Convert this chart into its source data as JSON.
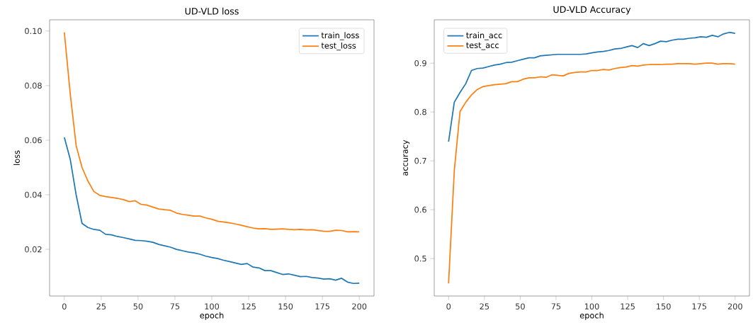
{
  "chart_data": [
    {
      "type": "line",
      "title": "UD-VLD loss",
      "xlabel": "epoch",
      "ylabel": "loss",
      "legend": "top right",
      "xlim": [
        -10,
        210
      ],
      "ylim": [
        0.0029,
        0.1041
      ],
      "xticks": [
        0,
        25,
        50,
        75,
        100,
        125,
        150,
        175,
        200
      ],
      "yticks": [
        0.02,
        0.04,
        0.06,
        0.08,
        {
          "value": 0.1,
          "label": "0.10"
        }
      ],
      "x": [
        0,
        4,
        8,
        12,
        16,
        20,
        24,
        28,
        32,
        36,
        40,
        44,
        48,
        52,
        56,
        60,
        64,
        68,
        72,
        76,
        80,
        84,
        88,
        92,
        96,
        100,
        104,
        108,
        112,
        116,
        120,
        124,
        128,
        132,
        136,
        140,
        144,
        148,
        152,
        156,
        160,
        164,
        168,
        172,
        176,
        180,
        184,
        188,
        192,
        196,
        200
      ],
      "series": [
        {
          "name": "train_loss",
          "color": "#1f77b4",
          "values": [
            0.061,
            0.053,
            0.04,
            0.0295,
            0.028,
            0.0273,
            0.027,
            0.0255,
            0.0253,
            0.0247,
            0.0243,
            0.0238,
            0.0233,
            0.0232,
            0.023,
            0.0226,
            0.0218,
            0.0213,
            0.0208,
            0.02,
            0.0195,
            0.019,
            0.0187,
            0.0182,
            0.0175,
            0.017,
            0.0166,
            0.016,
            0.0155,
            0.015,
            0.0145,
            0.0148,
            0.0135,
            0.0132,
            0.0122,
            0.0122,
            0.0115,
            0.0108,
            0.011,
            0.0105,
            0.01,
            0.0101,
            0.0097,
            0.0095,
            0.0091,
            0.0092,
            0.0087,
            0.0094,
            0.008,
            0.0075,
            0.0076
          ]
        },
        {
          "name": "test_loss",
          "color": "#ff7f0e",
          "values": [
            0.0995,
            0.077,
            0.058,
            0.05,
            0.045,
            0.0412,
            0.0398,
            0.0393,
            0.039,
            0.0387,
            0.0382,
            0.0375,
            0.0378,
            0.0365,
            0.0362,
            0.0355,
            0.0348,
            0.0345,
            0.0343,
            0.0333,
            0.0328,
            0.0325,
            0.0322,
            0.0322,
            0.0315,
            0.031,
            0.0303,
            0.03,
            0.0297,
            0.0293,
            0.0288,
            0.0283,
            0.0278,
            0.0275,
            0.0276,
            0.0273,
            0.0274,
            0.0275,
            0.0273,
            0.0272,
            0.0273,
            0.0271,
            0.0272,
            0.0269,
            0.0266,
            0.0266,
            0.027,
            0.0269,
            0.0264,
            0.0265,
            0.0264
          ]
        }
      ]
    },
    {
      "type": "line",
      "title": "UD-VLD Accuracy",
      "xlabel": "epoch",
      "ylabel": "accuracy",
      "legend": "top left",
      "xlim": [
        -10,
        210
      ],
      "ylim": [
        0.4233,
        0.9887
      ],
      "xticks": [
        0,
        25,
        50,
        75,
        100,
        125,
        150,
        175,
        200
      ],
      "yticks": [
        0.5,
        0.6,
        0.7,
        0.8,
        0.9
      ],
      "x": [
        0,
        4,
        8,
        12,
        16,
        20,
        24,
        28,
        32,
        36,
        40,
        44,
        48,
        52,
        56,
        60,
        64,
        68,
        72,
        76,
        80,
        84,
        88,
        92,
        96,
        100,
        104,
        108,
        112,
        116,
        120,
        124,
        128,
        132,
        136,
        140,
        144,
        148,
        152,
        156,
        160,
        164,
        168,
        172,
        176,
        180,
        184,
        188,
        192,
        196,
        200
      ],
      "series": [
        {
          "name": "train_acc",
          "color": "#1f77b4",
          "values": [
            0.739,
            0.82,
            0.84,
            0.858,
            0.885,
            0.889,
            0.89,
            0.893,
            0.896,
            0.898,
            0.901,
            0.902,
            0.905,
            0.908,
            0.911,
            0.911,
            0.915,
            0.916,
            0.917,
            0.918,
            0.918,
            0.918,
            0.918,
            0.918,
            0.919,
            0.921,
            0.923,
            0.924,
            0.926,
            0.929,
            0.93,
            0.933,
            0.936,
            0.932,
            0.94,
            0.936,
            0.94,
            0.945,
            0.944,
            0.947,
            0.949,
            0.949,
            0.951,
            0.952,
            0.954,
            0.953,
            0.957,
            0.954,
            0.96,
            0.963,
            0.961
          ]
        },
        {
          "name": "test_acc",
          "color": "#ff7f0e",
          "values": [
            0.449,
            0.68,
            0.801,
            0.82,
            0.835,
            0.846,
            0.852,
            0.854,
            0.856,
            0.857,
            0.858,
            0.862,
            0.862,
            0.867,
            0.87,
            0.87,
            0.872,
            0.871,
            0.876,
            0.875,
            0.874,
            0.879,
            0.881,
            0.882,
            0.882,
            0.885,
            0.885,
            0.887,
            0.886,
            0.889,
            0.891,
            0.892,
            0.895,
            0.894,
            0.896,
            0.897,
            0.897,
            0.897,
            0.898,
            0.898,
            0.899,
            0.899,
            0.899,
            0.898,
            0.899,
            0.9,
            0.9,
            0.898,
            0.899,
            0.899,
            0.898
          ]
        }
      ]
    }
  ]
}
